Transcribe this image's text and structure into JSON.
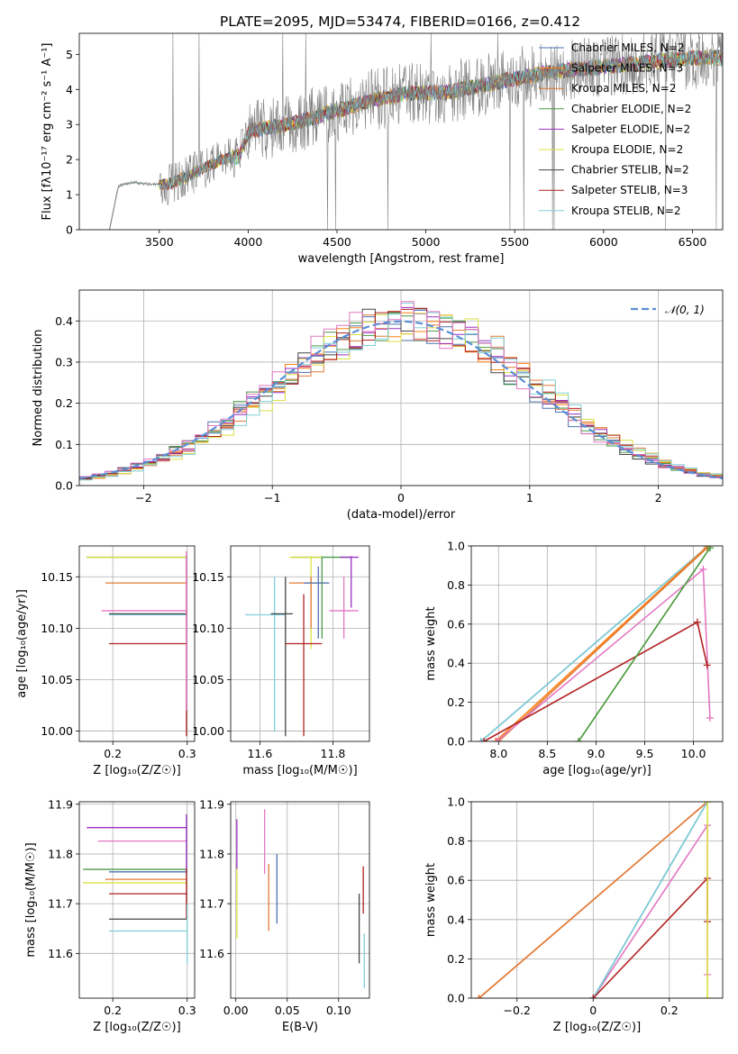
{
  "figure": {
    "title": "PLATE=2095, MJD=53474, FIBERID=0166, z=0.412"
  },
  "chart_data": [
    {
      "id": "spectrum",
      "type": "line",
      "title": "PLATE=2095, MJD=53474, FIBERID=0166, z=0.412",
      "xlabel": "wavelength [Angstrom, rest frame]",
      "ylabel": "Flux [fλ10⁻¹⁷ erg cm⁻² s⁻¹ A⁻¹]",
      "xlim": [
        3050,
        6670
      ],
      "ylim": [
        0,
        5.6
      ],
      "xticks": [
        3500,
        4000,
        4500,
        5000,
        5500,
        6000,
        6500
      ],
      "yticks": [
        0,
        1,
        2,
        3,
        4,
        5
      ],
      "grid": false,
      "legend_position": "top-right",
      "data_color": "#808080",
      "continuum": {
        "x": [
          3220,
          3270,
          3350,
          3450,
          3550,
          3650,
          3750,
          3850,
          3950,
          4000,
          4100,
          4300,
          4500,
          4700,
          4900,
          5100,
          5300,
          5500,
          5700,
          5900,
          6100,
          6300,
          6500,
          6670
        ],
        "y": [
          0,
          1.25,
          1.35,
          1.3,
          1.3,
          1.5,
          1.75,
          2.0,
          2.1,
          2.8,
          2.9,
          3.1,
          3.4,
          3.7,
          3.9,
          3.9,
          4.1,
          4.3,
          4.5,
          4.6,
          4.7,
          4.8,
          4.9,
          4.9
        ]
      },
      "series": [
        {
          "name": "Chabrier MILES, N_SSP=2",
          "color": "#4c72b0"
        },
        {
          "name": "Salpeter MILES, N_SSP=3",
          "color": "#ff7f0e"
        },
        {
          "name": "Kroupa MILES, N_SSP=2",
          "color": "#e07b39"
        },
        {
          "name": "Chabrier ELODIE, N_SSP=2",
          "color": "#4a9a4a"
        },
        {
          "name": "Salpeter ELODIE, N_SSP=2",
          "color": "#9b30c0"
        },
        {
          "name": "Kroupa ELODIE, N_SSP=2",
          "color": "#dde040"
        },
        {
          "name": "Chabrier STELIB, N_SSP=2",
          "color": "#444444"
        },
        {
          "name": "Salpeter STELIB, N_SSP=3",
          "color": "#b22222"
        },
        {
          "name": "Kroupa STELIB, N_SSP=2",
          "color": "#80d0d8"
        }
      ]
    },
    {
      "id": "residual-histogram",
      "type": "line",
      "xlabel": "(data-model)/error",
      "ylabel": "Normed distribution",
      "xlim": [
        -2.5,
        2.5
      ],
      "ylim": [
        0,
        0.475
      ],
      "xticks": [
        -2,
        -1,
        0,
        1,
        2
      ],
      "yticks": [
        0.0,
        0.1,
        0.2,
        0.3,
        0.4
      ],
      "grid": true,
      "legend_position": "top-right",
      "reference": {
        "name": "𝒩(0, 1)",
        "color": "#5a8fd6"
      },
      "bin_width": 0.1,
      "series_colors": [
        "#4c72b0",
        "#ff7f0e",
        "#e07b39",
        "#4a9a4a",
        "#9b30c0",
        "#dde040",
        "#444444",
        "#b22222",
        "#80d0d8",
        "#e377c2"
      ]
    },
    {
      "id": "age-vs-Z",
      "type": "scatter",
      "xlabel": "Z [log₁₀(Z/Z☉)]",
      "ylabel": "age  [log₁₀(age/yr)]",
      "xlim": [
        0.155,
        0.31
      ],
      "ylim": [
        9.99,
        10.18
      ],
      "xticks": [
        0.2,
        0.3
      ],
      "yticks": [
        10.0,
        10.05,
        10.1,
        10.15
      ],
      "grid": true,
      "points": [
        {
          "color": "#4a9a4a",
          "y": 10.169,
          "x_lo": 0.165,
          "x_hi": 0.3
        },
        {
          "color": "#dde040",
          "y": 10.169,
          "x_lo": 0.165,
          "x_hi": 0.3
        },
        {
          "color": "#e07b39",
          "y": 10.144,
          "x_lo": 0.19,
          "x_hi": 0.3
        },
        {
          "color": "#e377c2",
          "y": 10.117,
          "x_lo": 0.185,
          "x_hi": 0.3
        },
        {
          "color": "#80d0d8",
          "y": 10.113,
          "x_lo": 0.195,
          "x_hi": 0.3
        },
        {
          "color": "#444444",
          "y": 10.114,
          "x_lo": 0.195,
          "x_hi": 0.3
        },
        {
          "color": "#b22222",
          "y": 10.085,
          "x_lo": 0.195,
          "x_hi": 0.3
        },
        {
          "color": "#b22222",
          "x": 0.299,
          "y_lo": 9.995,
          "y_hi": 10.17
        },
        {
          "color": "#e377c2",
          "x": 0.299,
          "y_lo": 10.02,
          "y_hi": 10.175
        }
      ]
    },
    {
      "id": "age-vs-mass",
      "type": "scatter",
      "xlabel": "mass [log₁₀(M/M☉)]",
      "ylabel": "",
      "xlim": [
        11.52,
        11.9
      ],
      "ylim": [
        9.99,
        10.18
      ],
      "xticks": [
        11.6,
        11.8
      ],
      "yticks": [
        10.0,
        10.05,
        10.1,
        10.15
      ],
      "grid": true,
      "points": [
        {
          "color": "#4a9a4a",
          "x": 11.77,
          "y": 10.169,
          "x_lo": 11.69,
          "x_hi": 11.85,
          "y_lo": 10.09,
          "y_hi": 10.17
        },
        {
          "color": "#dde040",
          "x": 11.74,
          "y": 10.169,
          "x_lo": 11.68,
          "x_hi": 11.77,
          "y_lo": 10.08,
          "y_hi": 10.17
        },
        {
          "color": "#9b30c0",
          "x": 11.85,
          "y": 10.169,
          "x_lo": 11.82,
          "x_hi": 11.87,
          "y_lo": 10.12,
          "y_hi": 10.17
        },
        {
          "color": "#e07b39",
          "x": 11.74,
          "y": 10.144,
          "x_lo": 11.68,
          "x_hi": 11.78,
          "y_lo": 10.1,
          "y_hi": 10.15
        },
        {
          "color": "#4c72b0",
          "x": 11.76,
          "y": 10.144,
          "x_lo": 11.72,
          "x_hi": 11.79,
          "y_lo": 10.09,
          "y_hi": 10.16
        },
        {
          "color": "#e377c2",
          "x": 11.83,
          "y": 10.117,
          "x_lo": 11.79,
          "x_hi": 11.87,
          "y_lo": 10.09,
          "y_hi": 10.15
        },
        {
          "color": "#80d0d8",
          "x": 11.64,
          "y": 10.113,
          "x_lo": 11.56,
          "x_hi": 11.67,
          "y_lo": 10.0,
          "y_hi": 10.15
        },
        {
          "color": "#444444",
          "x": 11.67,
          "y": 10.114,
          "x_lo": 11.63,
          "x_hi": 11.69,
          "y_lo": 9.995,
          "y_hi": 10.15
        },
        {
          "color": "#b22222",
          "x": 11.72,
          "y": 10.085,
          "x_lo": 11.67,
          "x_hi": 11.77,
          "y_lo": 9.995,
          "y_hi": 10.133
        }
      ]
    },
    {
      "id": "weight-vs-age",
      "type": "line",
      "xlabel": "age  [log₁₀(age/yr)]",
      "ylabel": "mass weight",
      "xlim": [
        7.72,
        10.3
      ],
      "ylim": [
        0,
        1.0
      ],
      "xticks": [
        8.0,
        8.5,
        9.0,
        9.5,
        10.0
      ],
      "yticks": [
        0.0,
        0.2,
        0.4,
        0.6,
        0.8,
        1.0
      ],
      "grid": true,
      "series": [
        {
          "color": "#4c72b0",
          "x": [
            7.82,
            10.15
          ],
          "y": [
            0.0,
            1.0
          ]
        },
        {
          "color": "#80d0d8",
          "x": [
            7.82,
            10.15
          ],
          "y": [
            0.0,
            1.0
          ]
        },
        {
          "color": "#ff7f0e",
          "x": [
            7.97,
            10.15
          ],
          "y": [
            0.0,
            1.0
          ]
        },
        {
          "color": "#e07b39",
          "x": [
            8.0,
            10.14
          ],
          "y": [
            0.0,
            0.99
          ]
        },
        {
          "color": "#e377c2",
          "x": [
            7.98,
            10.1,
            10.17
          ],
          "y": [
            0.0,
            0.88,
            0.12
          ]
        },
        {
          "color": "#b22222",
          "x": [
            7.85,
            10.04,
            10.14
          ],
          "y": [
            0.0,
            0.61,
            0.39
          ]
        },
        {
          "color": "#dde040",
          "x": [
            8.82,
            10.17
          ],
          "y": [
            0.0,
            0.99
          ]
        },
        {
          "color": "#4a9a4a",
          "x": [
            8.82,
            10.17
          ],
          "y": [
            0.0,
            0.99
          ]
        }
      ]
    },
    {
      "id": "mass-vs-Z",
      "type": "scatter",
      "xlabel": "Z [log₁₀(Z/Z☉)]",
      "ylabel": "mass [log₁₀(M/M☉)]",
      "xlim": [
        0.155,
        0.31
      ],
      "ylim": [
        11.51,
        11.905
      ],
      "xticks": [
        0.2,
        0.3
      ],
      "yticks": [
        11.6,
        11.7,
        11.8,
        11.9
      ],
      "grid": true,
      "points": [
        {
          "color": "#9b30c0",
          "y": 11.853,
          "x_lo": 0.165,
          "x_hi": 0.3
        },
        {
          "color": "#e377c2",
          "y": 11.826,
          "x_lo": 0.18,
          "x_hi": 0.3
        },
        {
          "color": "#4a9a4a",
          "y": 11.769,
          "x_lo": 0.16,
          "x_hi": 0.3
        },
        {
          "color": "#4c72b0",
          "y": 11.764,
          "x_lo": 0.195,
          "x_hi": 0.3
        },
        {
          "color": "#e07b39",
          "y": 11.749,
          "x_lo": 0.19,
          "x_hi": 0.3
        },
        {
          "color": "#dde040",
          "y": 11.742,
          "x_lo": 0.16,
          "x_hi": 0.3
        },
        {
          "color": "#b22222",
          "y": 11.72,
          "x_lo": 0.195,
          "x_hi": 0.3
        },
        {
          "color": "#444444",
          "y": 11.669,
          "x_lo": 0.195,
          "x_hi": 0.3
        },
        {
          "color": "#80d0d8",
          "y": 11.645,
          "x_lo": 0.195,
          "x_hi": 0.3
        },
        {
          "color": "#9b30c0",
          "x": 0.299,
          "y_lo": 11.76,
          "y_hi": 11.88
        },
        {
          "color": "#b22222",
          "x": 0.299,
          "y_lo": 11.67,
          "y_hi": 11.77
        },
        {
          "color": "#80d0d8",
          "x": 0.3,
          "y_lo": 11.58,
          "y_hi": 11.7
        }
      ]
    },
    {
      "id": "mass-vs-ebv",
      "type": "scatter",
      "xlabel": "E(B-V)",
      "ylabel": "",
      "xlim": [
        -0.005,
        0.13
      ],
      "ylim": [
        11.51,
        11.905
      ],
      "xticks": [
        0.0,
        0.05,
        0.1
      ],
      "yticks": [
        11.6,
        11.7,
        11.8,
        11.9
      ],
      "grid": true,
      "points": [
        {
          "color": "#9b30c0",
          "x": 0.001,
          "y_lo": 11.77,
          "y_hi": 11.87
        },
        {
          "color": "#dde040",
          "x": 0.001,
          "y_lo": 11.63,
          "y_hi": 11.77
        },
        {
          "color": "#e377c2",
          "x": 0.028,
          "y_lo": 11.76,
          "y_hi": 11.89
        },
        {
          "color": "#e07b39",
          "x": 0.032,
          "y_lo": 11.645,
          "y_hi": 11.78
        },
        {
          "color": "#4c72b0",
          "x": 0.04,
          "y_lo": 11.66,
          "y_hi": 11.8
        },
        {
          "color": "#444444",
          "x": 0.12,
          "y_lo": 11.58,
          "y_hi": 11.72
        },
        {
          "color": "#b22222",
          "x": 0.124,
          "y_lo": 11.68,
          "y_hi": 11.775
        },
        {
          "color": "#80d0d8",
          "x": 0.125,
          "y_lo": 11.53,
          "y_hi": 11.64
        }
      ]
    },
    {
      "id": "weight-vs-Z",
      "type": "line",
      "xlabel": "Z [log₁₀(Z/Z☉)]",
      "ylabel": "mass weight",
      "xlim": [
        -0.32,
        0.34
      ],
      "ylim": [
        0,
        1.0
      ],
      "xticks": [
        -0.2,
        0.0,
        0.2
      ],
      "yticks": [
        0.0,
        0.2,
        0.4,
        0.6,
        0.8,
        1.0
      ],
      "grid": true,
      "series": [
        {
          "color": "#ff7f0e",
          "x": [
            -0.3,
            0.3
          ],
          "y": [
            0.0,
            1.0
          ]
        },
        {
          "color": "#e07b39",
          "x": [
            -0.3,
            0.3
          ],
          "y": [
            0.0,
            1.0
          ]
        },
        {
          "color": "#e377c2",
          "x": [
            0.0,
            0.3,
            0.3
          ],
          "y": [
            0.0,
            0.88,
            0.12
          ]
        },
        {
          "color": "#4c72b0",
          "x": [
            0.0,
            0.3
          ],
          "y": [
            0.0,
            1.0
          ]
        },
        {
          "color": "#80d0d8",
          "x": [
            0.0,
            0.3
          ],
          "y": [
            0.0,
            1.0
          ]
        },
        {
          "color": "#b22222",
          "x": [
            0.0,
            0.3,
            0.3
          ],
          "y": [
            0.0,
            0.61,
            0.39
          ]
        },
        {
          "color": "#dde040",
          "x": [
            0.3,
            0.3
          ],
          "y": [
            0.0,
            1.0
          ]
        }
      ]
    }
  ]
}
